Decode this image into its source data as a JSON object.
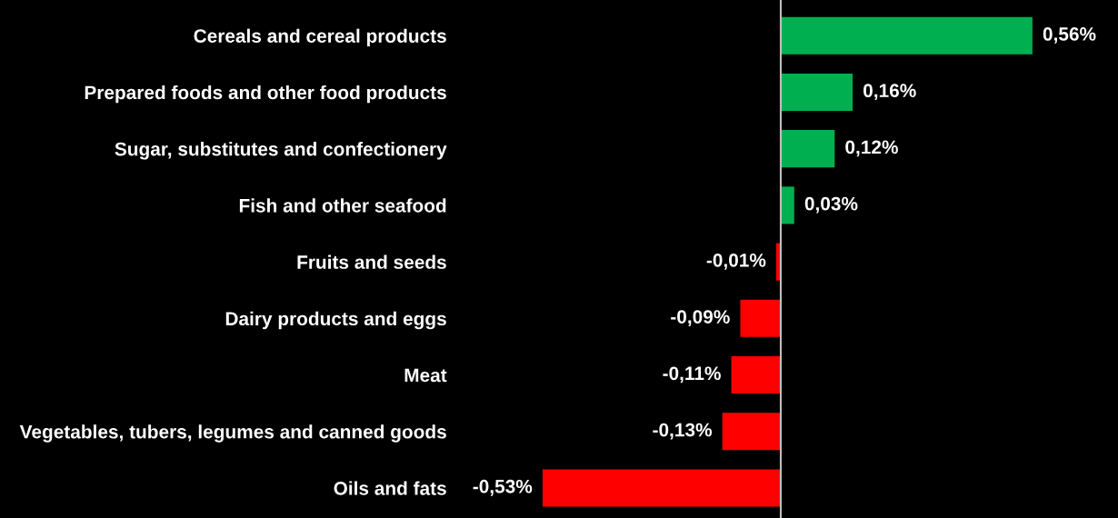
{
  "chart_data": {
    "type": "bar",
    "orientation": "horizontal",
    "categories": [
      "Cereals and cereal products",
      "Prepared foods and other food products",
      "Sugar, substitutes and confectionery",
      "Fish and other seafood",
      "Fruits and seeds",
      "Dairy products and eggs",
      "Meat",
      "Vegetables, tubers, legumes and canned goods",
      "Oils and fats"
    ],
    "values": [
      0.56,
      0.16,
      0.12,
      0.03,
      -0.01,
      -0.09,
      -0.11,
      -0.13,
      -0.53
    ],
    "colors": [
      "#00b050",
      "#00b050",
      "#00b050",
      "#00b050",
      "#ff0000",
      "#ff0000",
      "#ff0000",
      "#ff0000",
      "#ff0000"
    ],
    "value_labels": [
      "0,56%",
      "0,16%",
      "0,12%",
      "0,03%",
      "-0,01%",
      "-0,09%",
      "-0,11%",
      "-0,13%",
      "-0,53%"
    ],
    "grid": false,
    "legend": false
  }
}
